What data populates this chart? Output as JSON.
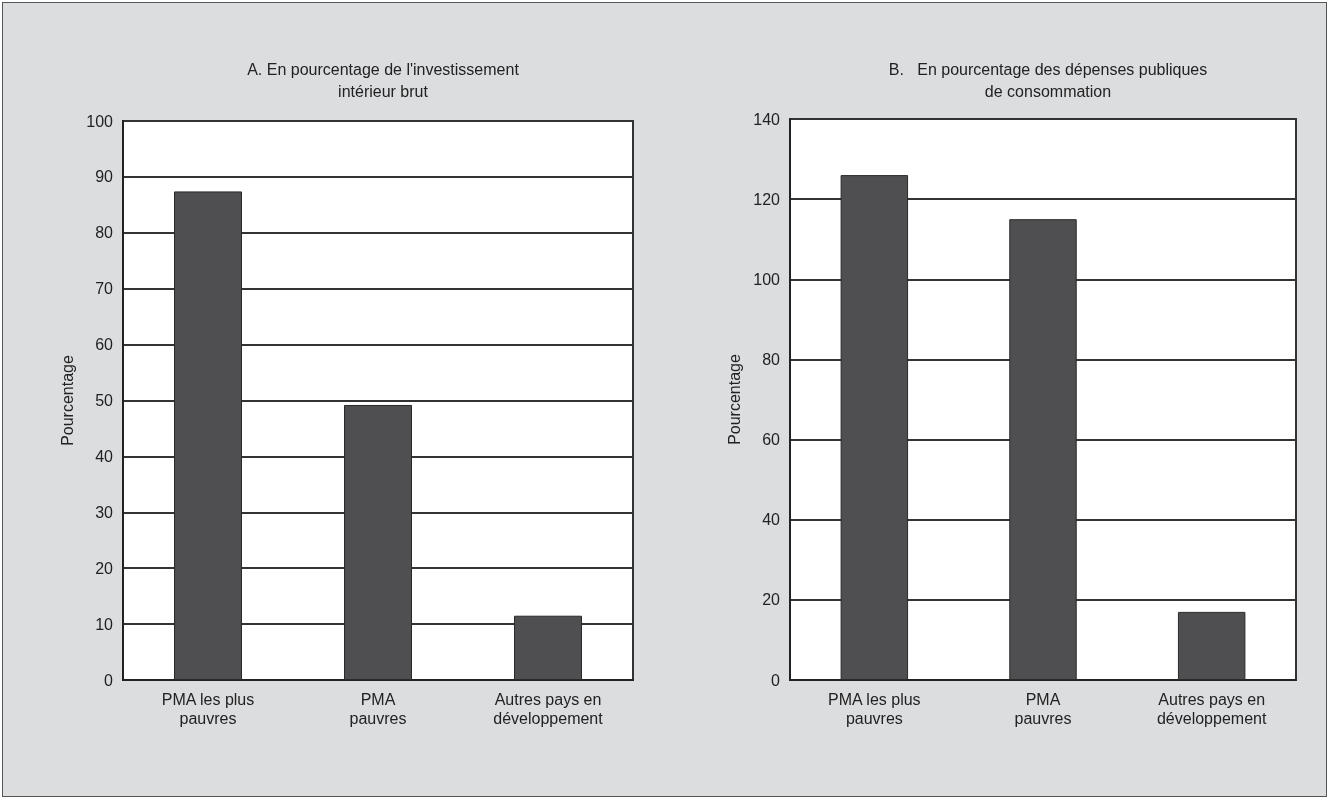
{
  "chart_data": [
    {
      "type": "bar",
      "title": "A. En pourcentage de l'investissement\nintérieur brut",
      "ylabel": "Pourcentage",
      "categories": [
        "PMA les plus\npauvres",
        "PMA\npauvres",
        "Autres pays en\ndéveloppement"
      ],
      "values": [
        87.4,
        49.2,
        11.5
      ],
      "color": "#4f4f51",
      "ylim": [
        0,
        100
      ],
      "yticks": [
        0,
        10,
        20,
        30,
        40,
        50,
        60,
        70,
        80,
        90,
        100
      ],
      "grid": "y"
    },
    {
      "type": "bar",
      "title": "B.   En pourcentage des dépenses publiques\nde consommation",
      "ylabel": "Pourcentage",
      "categories": [
        "PMA les plus\npauvres",
        "PMA\npauvres",
        "Autres pays en\ndéveloppement"
      ],
      "values": [
        126,
        115,
        17
      ],
      "color": "#4f4f51",
      "ylim": [
        0,
        140
      ],
      "yticks": [
        0,
        20,
        40,
        60,
        80,
        100,
        120,
        140
      ],
      "grid": "y"
    }
  ]
}
